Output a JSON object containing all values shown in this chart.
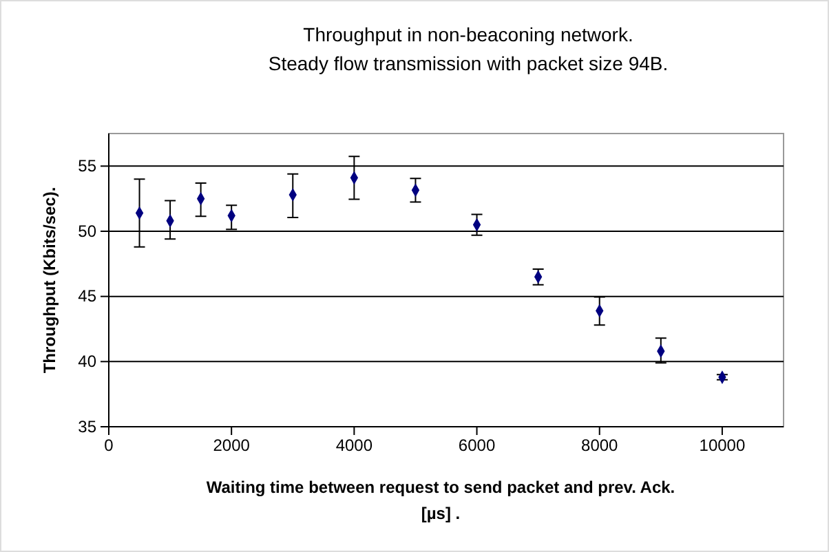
{
  "chart_data": {
    "type": "scatter",
    "title": "Throughput in non-beaconing network.\nSteady flow transmission with packet size 94B.",
    "xlabel": "Waiting time between request to send packet and prev. Ack.\n[µs] .",
    "ylabel": "Throughput (Kbits/sec).",
    "x": [
      500,
      1000,
      1500,
      2000,
      3000,
      4000,
      5000,
      6000,
      7000,
      8000,
      9000,
      10000
    ],
    "series": [
      {
        "color": "#000080",
        "values": [
          51.4,
          50.8,
          52.5,
          51.2,
          52.8,
          54.1,
          53.15,
          50.5,
          46.5,
          43.9,
          40.8,
          38.8
        ],
        "errors": [
          [
            48.8,
            54.0
          ],
          [
            49.4,
            52.35
          ],
          [
            51.15,
            53.7
          ],
          [
            50.15,
            52.0
          ],
          [
            51.05,
            54.4
          ],
          [
            52.45,
            55.75
          ],
          [
            52.25,
            54.05
          ],
          [
            49.7,
            51.3
          ],
          [
            45.9,
            47.1
          ],
          [
            42.8,
            44.95
          ],
          [
            39.9,
            41.8
          ],
          [
            38.6,
            39.0
          ]
        ]
      }
    ],
    "xlim": [
      0,
      11000
    ],
    "xticks": [
      0,
      2000,
      4000,
      6000,
      8000,
      10000
    ],
    "ylim": [
      35,
      57.5
    ],
    "yticks": [
      35,
      40,
      45,
      50,
      55
    ],
    "grid": "y",
    "marker": "diamond"
  }
}
